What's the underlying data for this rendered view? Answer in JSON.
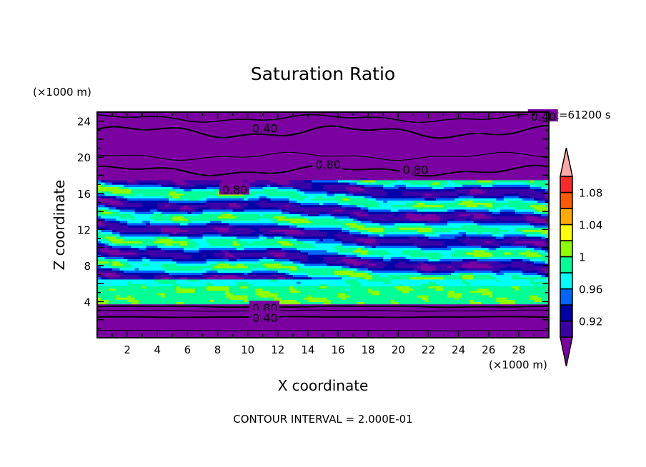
{
  "chart_data": {
    "type": "heatmap",
    "title": "Saturation Ratio",
    "xlabel": "X coordinate",
    "ylabel": "Z coordinate",
    "x_units": "(×1000 m)",
    "y_units": "(×1000 m)",
    "xlim": [
      0,
      30
    ],
    "ylim": [
      0,
      25
    ],
    "x_ticks": [
      2,
      4,
      6,
      8,
      10,
      12,
      14,
      16,
      18,
      20,
      22,
      24,
      26,
      28
    ],
    "y_ticks": [
      4,
      8,
      12,
      16,
      20,
      24
    ],
    "time_label": "t=61200 s",
    "footer": "CONTOUR INTERVAL = 2.000E-01",
    "contour_labels": [
      {
        "text": "0.40",
        "x": 10.3,
        "z": 23.3
      },
      {
        "text": "0.80",
        "x": 14.5,
        "z": 19.3
      },
      {
        "text": "0.80",
        "x": 20.3,
        "z": 18.7
      },
      {
        "text": "0.80",
        "x": 8.3,
        "z": 16.5
      },
      {
        "text": "0.80",
        "x": 10.3,
        "z": 3.4
      },
      {
        "text": "0.40",
        "x": 10.3,
        "z": 2.3
      },
      {
        "text": "0.40",
        "x": 28.8,
        "z": 24.6
      }
    ],
    "colorbar": {
      "levels": [
        0.9,
        0.92,
        0.94,
        0.96,
        0.98,
        1.0,
        1.02,
        1.04,
        1.06,
        1.08,
        1.1
      ],
      "colors": [
        "#3a00a8",
        "#0000a8",
        "#0064ff",
        "#00ffff",
        "#00ff96",
        "#8cff00",
        "#ffff00",
        "#ffaa00",
        "#ff5a00",
        "#ff2828"
      ],
      "under_color": "#7a00a0",
      "over_color": "#ffa8a8",
      "tick_labels": [
        {
          "value": 1.08,
          "text": "1.08"
        },
        {
          "value": 1.04,
          "text": "1.04"
        },
        {
          "value": 1.0,
          "text": "1"
        },
        {
          "value": 0.96,
          "text": "0.96"
        },
        {
          "value": 0.92,
          "text": "0.92"
        }
      ]
    }
  }
}
